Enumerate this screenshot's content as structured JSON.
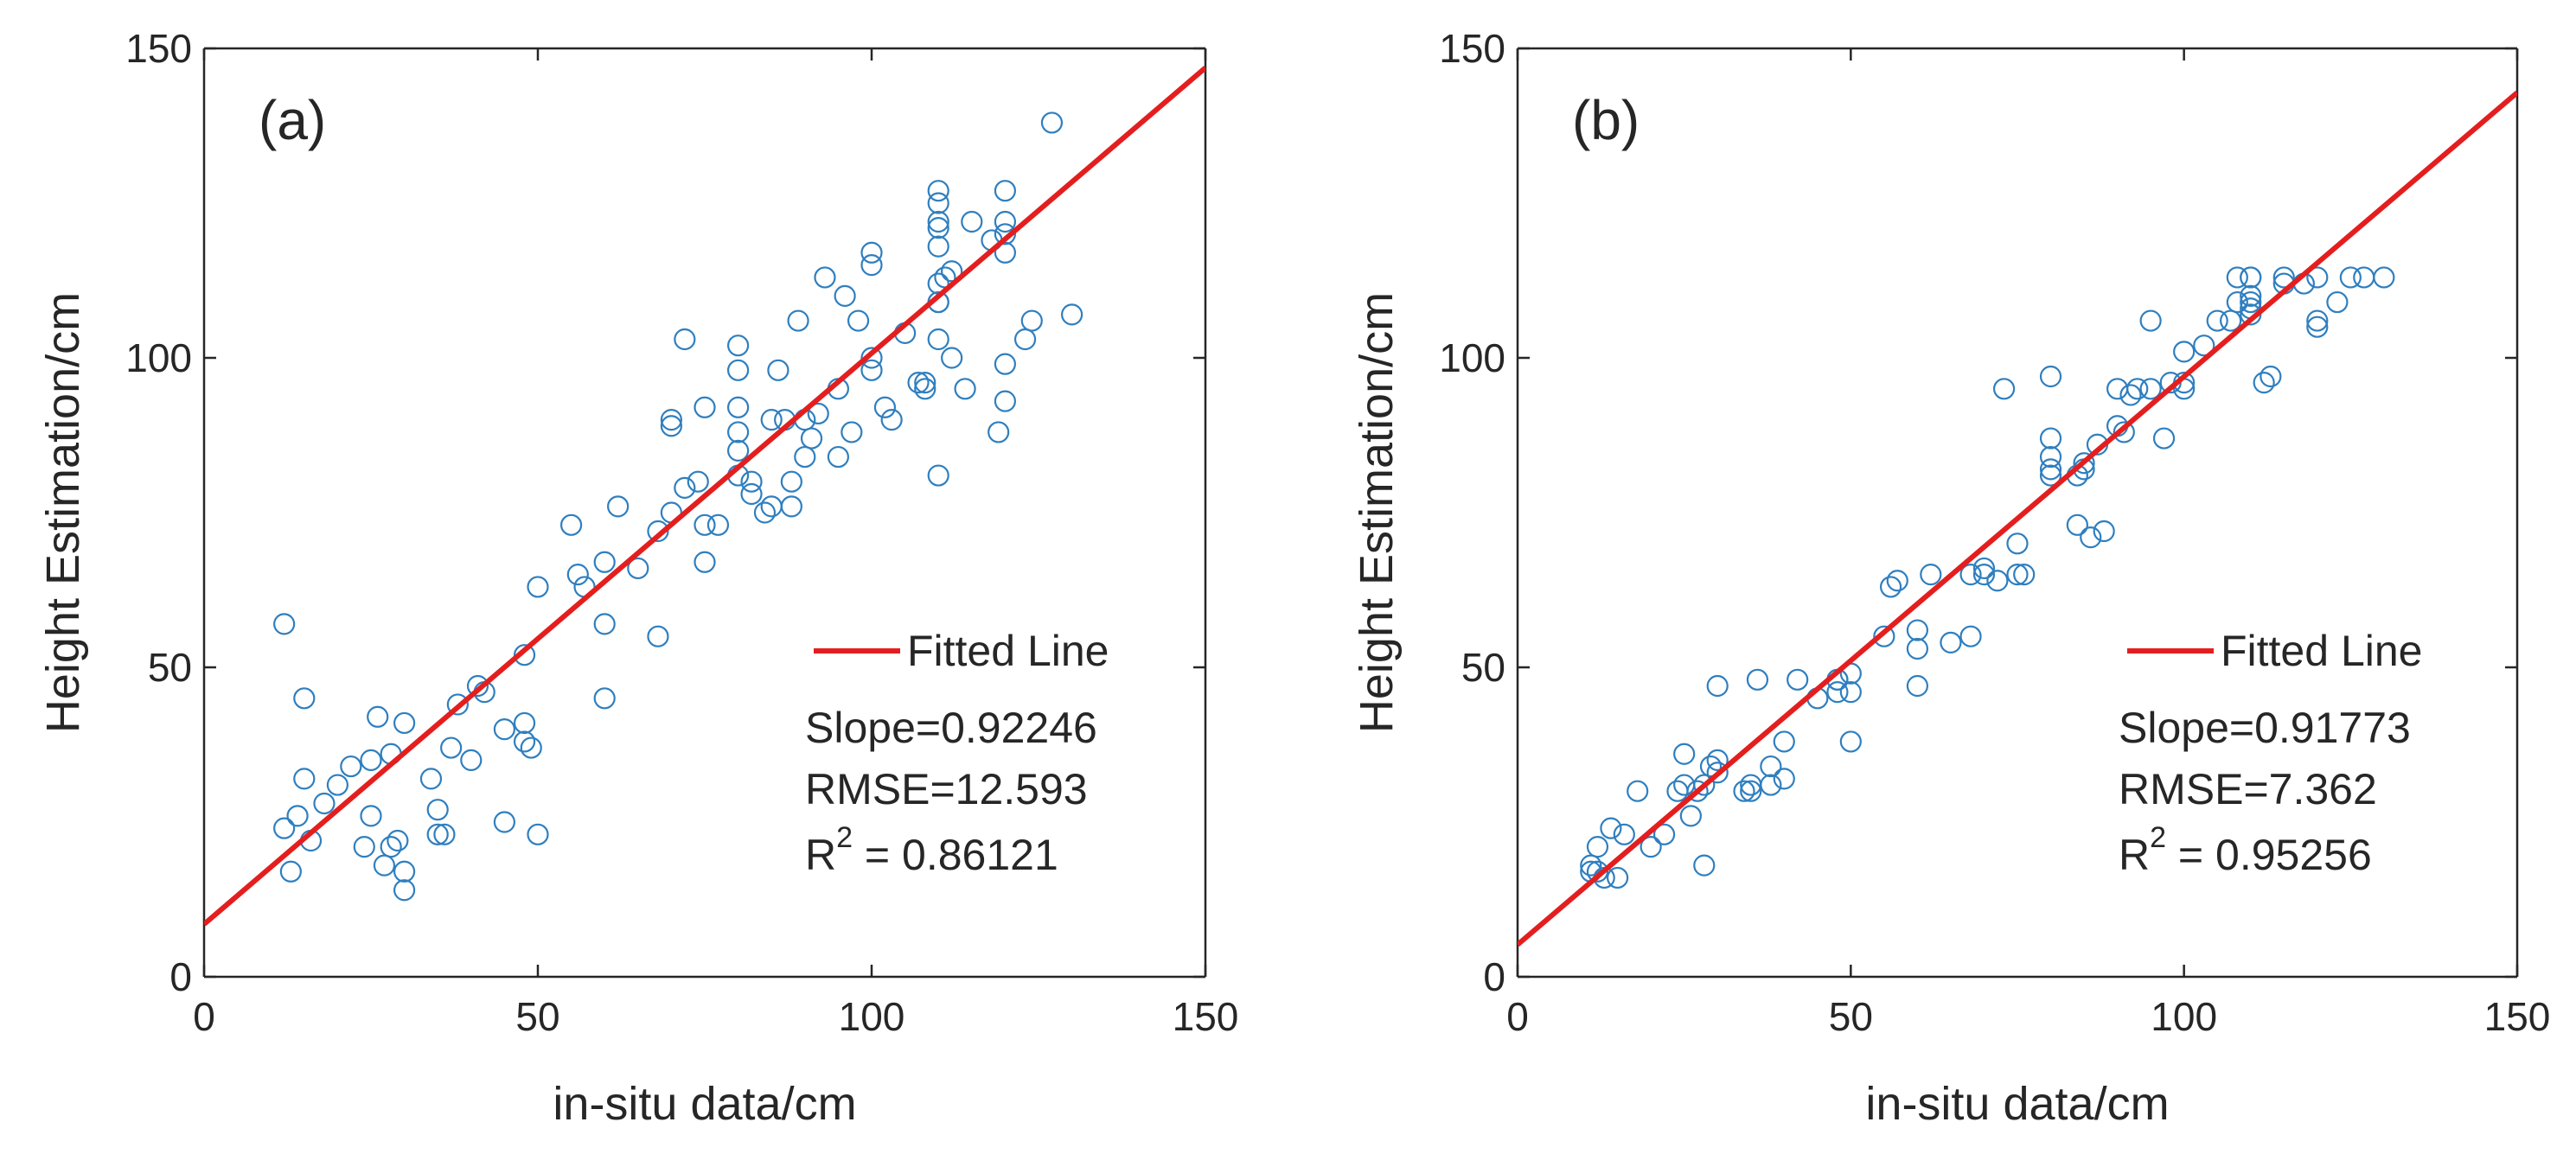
{
  "chart_data": [
    {
      "type": "scatter",
      "panel_label": "(a)",
      "xlabel": "in-situ data/cm",
      "ylabel": "Height Estimation/cm",
      "xlim": [
        0,
        150
      ],
      "ylim": [
        0,
        150
      ],
      "xticks": [
        "0",
        "50",
        "100",
        "150"
      ],
      "yticks": [
        "0",
        "50",
        "100",
        "150"
      ],
      "grid": false,
      "legend": {
        "label": "Fitted Line",
        "position": "right"
      },
      "fit_line": {
        "slope": 0.92246,
        "intercept": 8.5
      },
      "stats": {
        "slope": "Slope=0.92246",
        "rmse": "RMSE=12.593",
        "r2_base": "R",
        "r2_exp": "2",
        "r2_value": " = 0.86121"
      },
      "marker_color": "#2f7fbf",
      "line_color": "#e41e1e",
      "x": [
        12,
        12,
        13,
        14,
        15,
        15,
        16,
        18,
        20,
        22,
        24,
        25,
        25,
        26,
        27,
        28,
        28,
        29,
        30,
        30,
        30,
        34,
        35,
        35,
        36,
        37,
        38,
        40,
        41,
        42,
        45,
        45,
        48,
        48,
        48,
        49,
        50,
        50,
        55,
        56,
        57,
        60,
        60,
        60,
        62,
        65,
        68,
        68,
        70,
        70,
        70,
        72,
        72,
        74,
        75,
        75,
        75,
        77,
        80,
        80,
        80,
        80,
        80,
        80,
        82,
        82,
        84,
        85,
        85,
        86,
        87,
        88,
        88,
        89,
        90,
        90,
        91,
        92,
        93,
        95,
        95,
        96,
        97,
        98,
        100,
        100,
        100,
        100,
        102,
        103,
        105,
        107,
        108,
        108,
        110,
        110,
        110,
        110,
        110,
        110,
        110,
        110,
        110,
        110,
        111,
        112,
        112,
        114,
        115,
        118,
        119,
        120,
        120,
        120,
        120,
        120,
        120,
        123,
        124,
        127,
        130
      ],
      "y": [
        24,
        57,
        17,
        26,
        32,
        45,
        22,
        28,
        31,
        34,
        21,
        26,
        35,
        42,
        18,
        36,
        21,
        22,
        41,
        17,
        14,
        32,
        27,
        23,
        23,
        37,
        44,
        35,
        47,
        46,
        25,
        40,
        41,
        38,
        52,
        37,
        23,
        63,
        73,
        65,
        63,
        67,
        45,
        57,
        76,
        66,
        55,
        72,
        90,
        75,
        89,
        79,
        103,
        80,
        67,
        73,
        92,
        73,
        81,
        85,
        88,
        92,
        98,
        102,
        80,
        78,
        75,
        90,
        76,
        98,
        90,
        80,
        76,
        106,
        90,
        84,
        87,
        91,
        113,
        84,
        95,
        110,
        88,
        106,
        115,
        117,
        100,
        98,
        92,
        90,
        104,
        96,
        96,
        95,
        118,
        122,
        109,
        127,
        103,
        112,
        109,
        81,
        121,
        125,
        113,
        114,
        100,
        95,
        122,
        119,
        88,
        117,
        99,
        120,
        127,
        122,
        93,
        103,
        106,
        138,
        107
      ]
    },
    {
      "type": "scatter",
      "panel_label": "(b)",
      "xlabel": "in-situ data/cm",
      "ylabel": "Height Estimation/cm",
      "xlim": [
        0,
        150
      ],
      "ylim": [
        0,
        150
      ],
      "xticks": [
        "0",
        "50",
        "100",
        "150"
      ],
      "yticks": [
        "0",
        "50",
        "100",
        "150"
      ],
      "grid": false,
      "legend": {
        "label": "Fitted Line",
        "position": "right"
      },
      "fit_line": {
        "slope": 0.91773,
        "intercept": 5.2
      },
      "stats": {
        "slope": "Slope=0.91773",
        "rmse": "RMSE=7.362",
        "r2_base": "R",
        "r2_exp": "2",
        "r2_value": " = 0.95256"
      },
      "marker_color": "#2f7fbf",
      "line_color": "#e41e1e",
      "x": [
        11,
        11,
        12,
        12,
        13,
        14,
        15,
        16,
        18,
        20,
        22,
        24,
        25,
        25,
        26,
        27,
        28,
        28,
        29,
        30,
        30,
        30,
        34,
        35,
        35,
        36,
        38,
        38,
        40,
        40,
        42,
        45,
        48,
        48,
        48,
        50,
        50,
        50,
        55,
        56,
        57,
        60,
        60,
        60,
        62,
        65,
        68,
        68,
        70,
        70,
        72,
        73,
        75,
        75,
        76,
        80,
        80,
        80,
        80,
        80,
        84,
        84,
        85,
        85,
        86,
        87,
        88,
        90,
        90,
        91,
        92,
        93,
        95,
        95,
        97,
        98,
        100,
        100,
        100,
        103,
        105,
        107,
        108,
        108,
        110,
        110,
        110,
        110,
        110,
        110,
        112,
        113,
        115,
        115,
        118,
        120,
        120,
        120,
        123,
        125,
        127,
        130
      ],
      "y": [
        18,
        17,
        21,
        17,
        16,
        24,
        16,
        23,
        30,
        21,
        23,
        30,
        36,
        31,
        26,
        30,
        31,
        18,
        34,
        33,
        35,
        47,
        30,
        31,
        30,
        48,
        31,
        34,
        38,
        32,
        48,
        45,
        48,
        46,
        48,
        46,
        49,
        38,
        55,
        63,
        64,
        53,
        47,
        56,
        65,
        54,
        55,
        65,
        65,
        66,
        64,
        95,
        65,
        70,
        65,
        84,
        82,
        81,
        87,
        97,
        73,
        81,
        82,
        83,
        71,
        86,
        72,
        89,
        95,
        88,
        94,
        95,
        95,
        106,
        87,
        96,
        96,
        95,
        101,
        102,
        106,
        106,
        113,
        109,
        108,
        109,
        113,
        107,
        110,
        113,
        96,
        97,
        112,
        113,
        112,
        105,
        106,
        113,
        109,
        113,
        113,
        113
      ]
    }
  ]
}
